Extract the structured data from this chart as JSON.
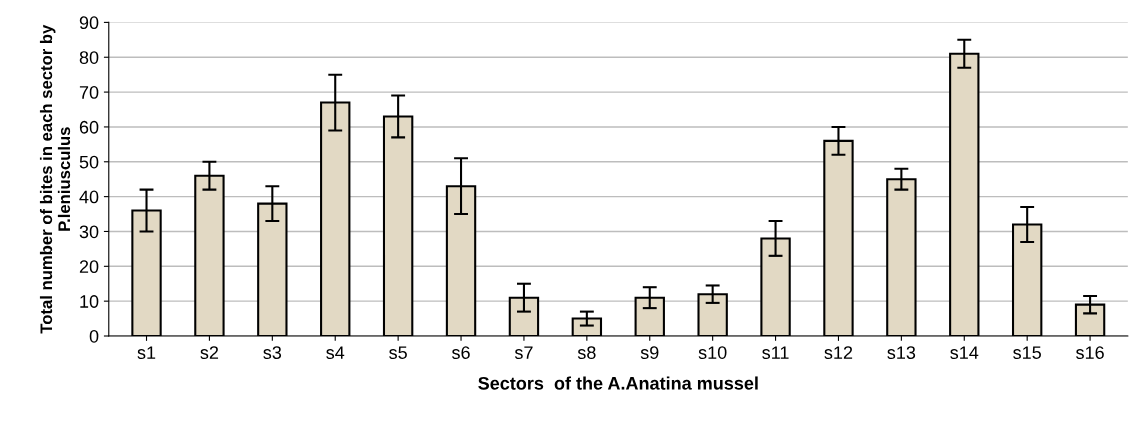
{
  "chart_data": {
    "type": "bar",
    "xlabel": "Sectors  of the A.Anatina mussel",
    "ylabel": "Total number of bites in each sector by\nP.leniusculus",
    "categories": [
      "s1",
      "s2",
      "s3",
      "s4",
      "s5",
      "s6",
      "s7",
      "s8",
      "s9",
      "s10",
      "s11",
      "s12",
      "s13",
      "s14",
      "s15",
      "s16"
    ],
    "values": [
      36,
      46,
      38,
      67,
      63,
      43,
      11,
      5,
      11,
      12,
      28,
      56,
      45,
      81,
      32,
      9
    ],
    "errors": [
      6,
      4,
      5,
      8,
      6,
      8,
      4,
      2,
      3,
      2.5,
      5,
      4,
      3,
      4,
      5,
      2.5
    ],
    "color": "#e2d9c4",
    "ylim": [
      0,
      90
    ],
    "yticks": [
      0,
      10,
      20,
      30,
      40,
      50,
      60,
      70,
      80,
      90
    ],
    "grid": "y",
    "legend": false
  }
}
